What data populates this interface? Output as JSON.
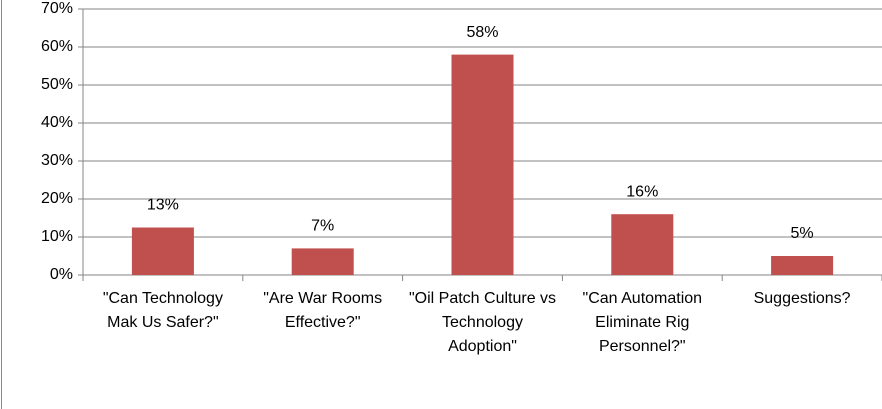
{
  "chart_data": {
    "type": "bar",
    "categories": [
      "\"Can Technology Mak Us Safer?\"",
      "\"Are War Rooms Effective?\"",
      "\"Oil Patch Culture vs Technology Adoption\"",
      "\"Can Automation Eliminate Rig Personnel?\"",
      "Suggestions?"
    ],
    "values": [
      12.5,
      7,
      58,
      16,
      5
    ],
    "value_labels": [
      "13%",
      "7%",
      "58%",
      "16%",
      "5%"
    ],
    "color": "#c0504d",
    "ylim": [
      0,
      70
    ],
    "yticks": [
      {
        "value": 0,
        "label": "0%"
      },
      {
        "value": 10,
        "label": "10%"
      },
      {
        "value": 20,
        "label": "20%"
      },
      {
        "value": 30,
        "label": "30%"
      },
      {
        "value": 40,
        "label": "40%"
      },
      {
        "value": 50,
        "label": "50%"
      },
      {
        "value": 60,
        "label": "60%"
      },
      {
        "value": 70,
        "label": "70%"
      }
    ],
    "grid": true
  }
}
